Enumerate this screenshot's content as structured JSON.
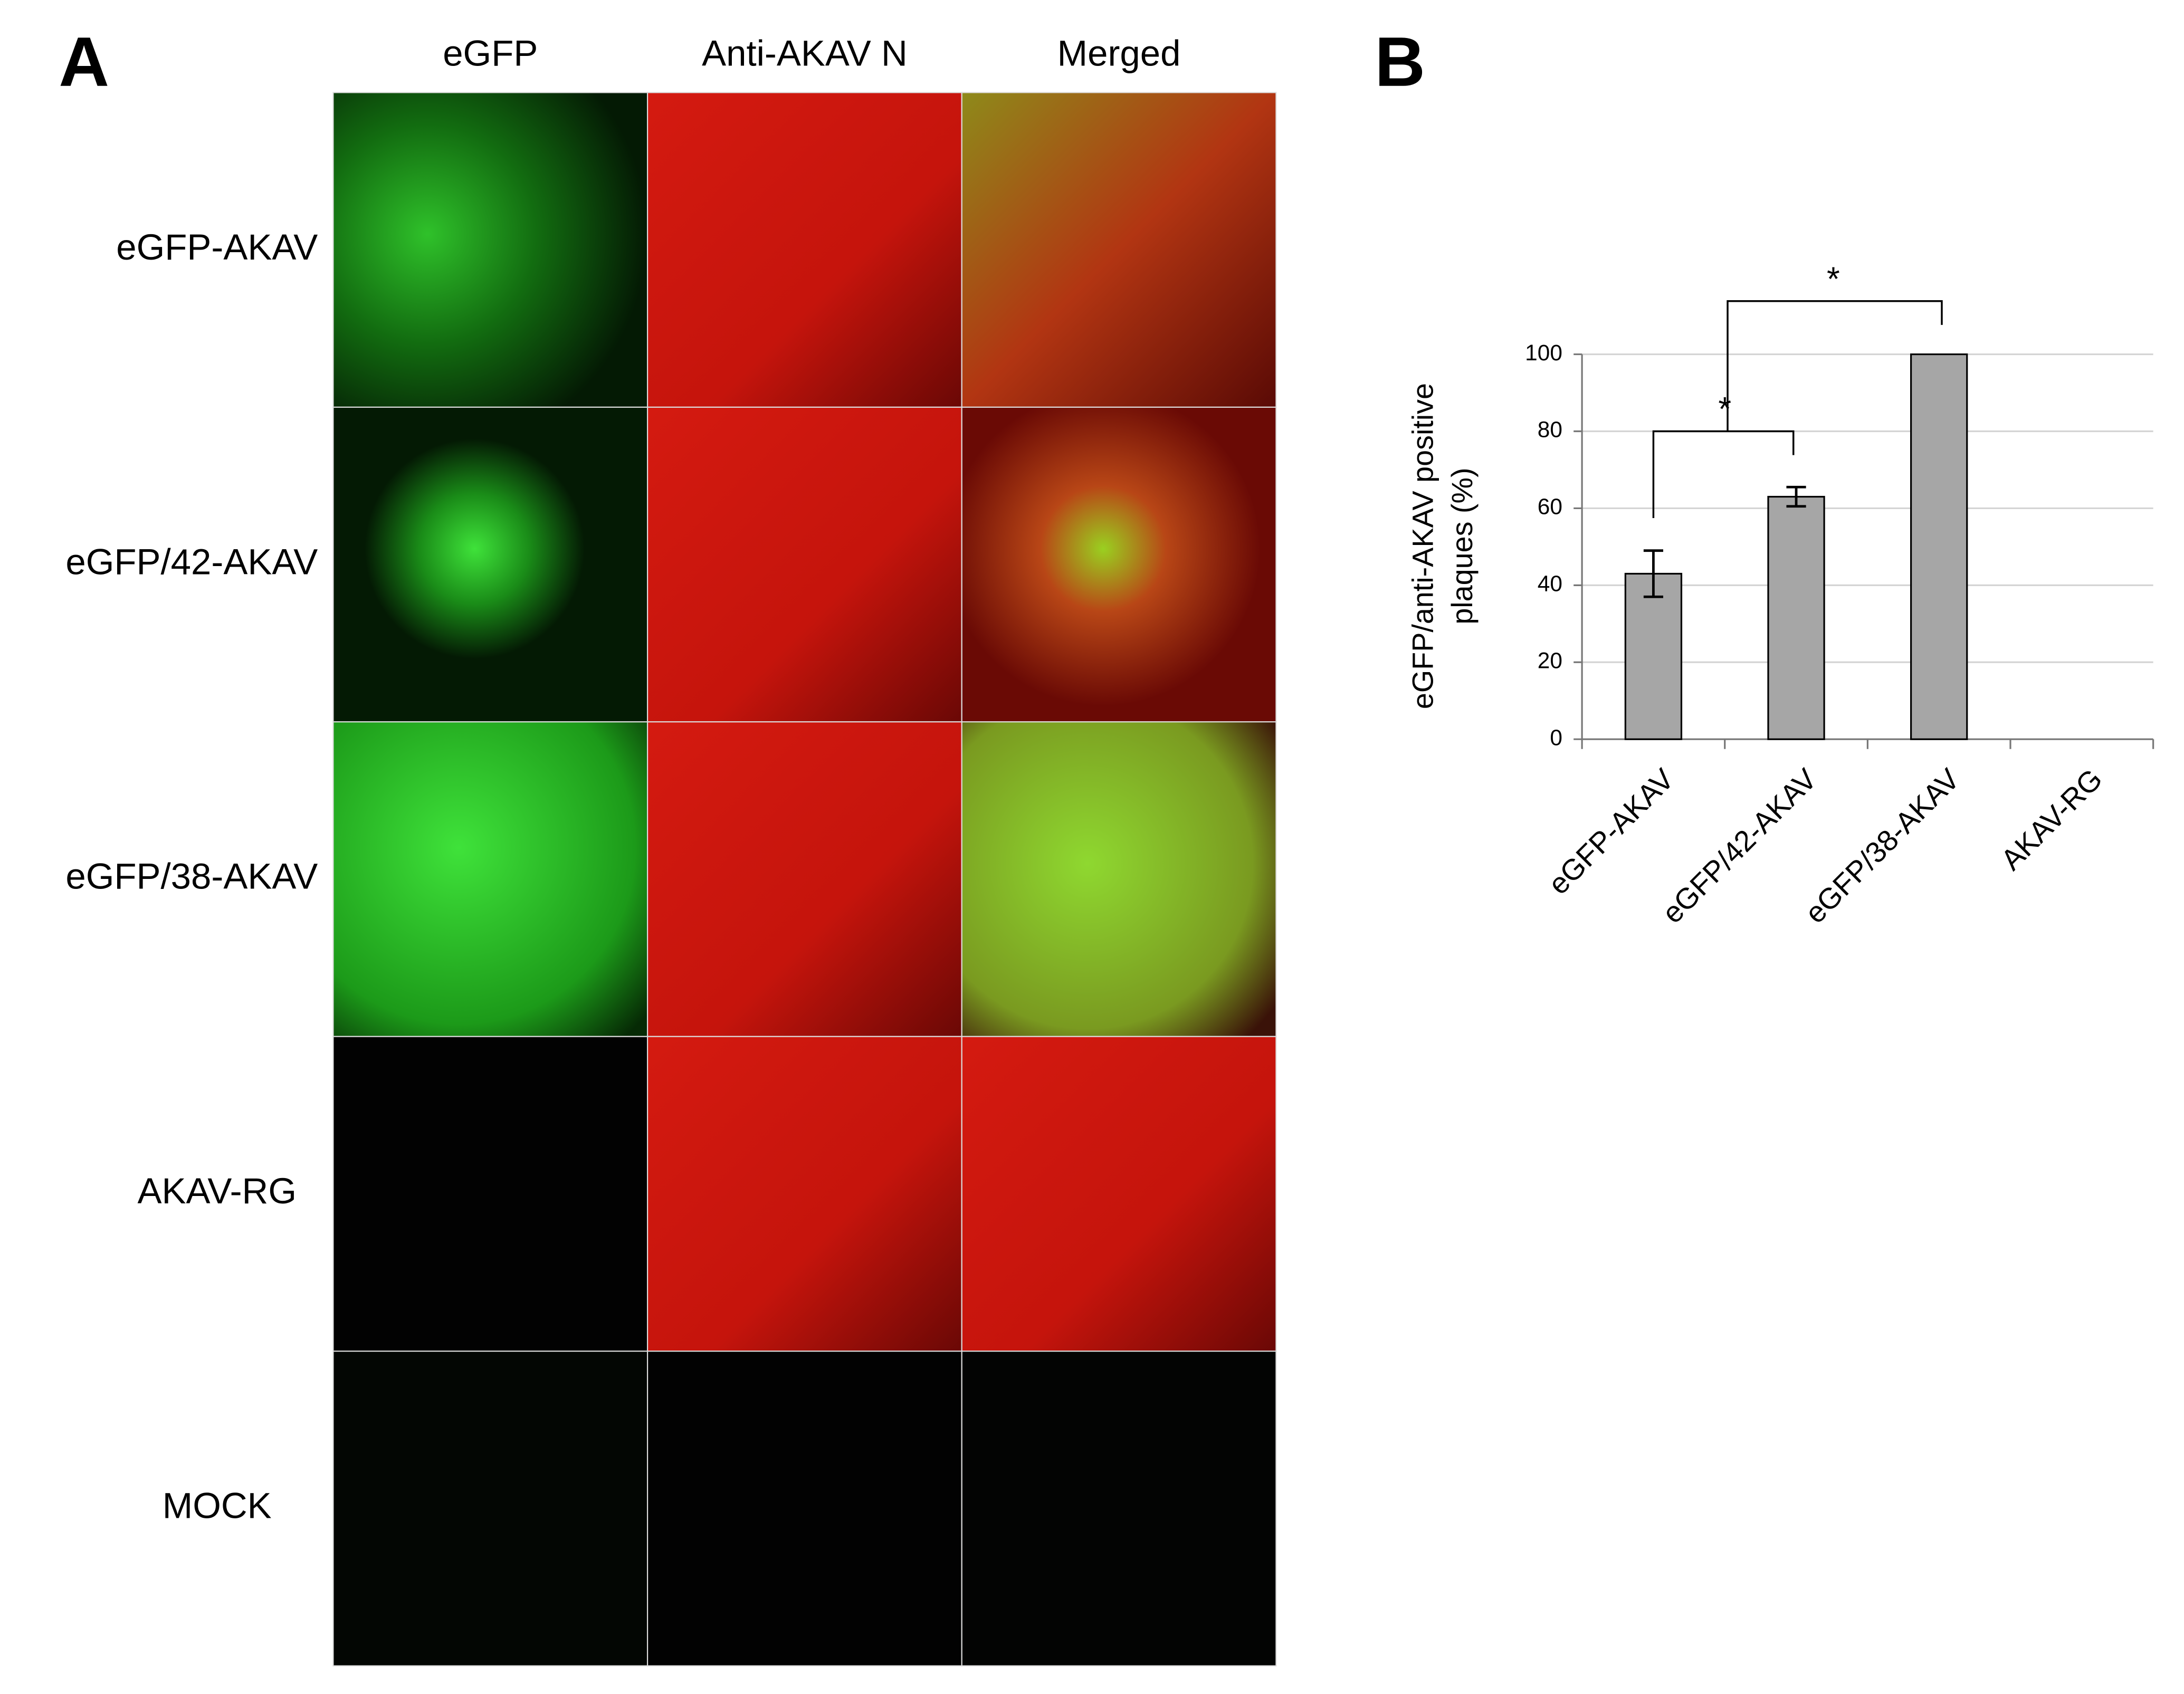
{
  "panel_a": {
    "label": "A",
    "columns": [
      "eGFP",
      "Anti-AKAV N",
      "Merged"
    ],
    "rows": [
      "eGFP-AKAV",
      "eGFP/42-AKAV",
      "eGFP/38-AKAV",
      "AKAV-RG",
      "MOCK"
    ]
  },
  "chart_data": {
    "type": "bar",
    "label": "B",
    "y_label": [
      "eGFP/anti-AKAV positive",
      "plaques (%)"
    ],
    "categories": [
      "eGFP-AKAV",
      "eGFP/42-AKAV",
      "eGFP/38-AKAV",
      "AKAV-RG"
    ],
    "values": [
      43,
      63,
      100,
      0
    ],
    "errors": [
      6,
      2.5,
      null,
      null
    ],
    "color": "#a6a6a6",
    "ylim": [
      0,
      100
    ],
    "yticks": [
      0,
      20,
      40,
      60,
      80,
      100
    ],
    "grid": true,
    "annotations": [
      "*",
      "*"
    ]
  }
}
